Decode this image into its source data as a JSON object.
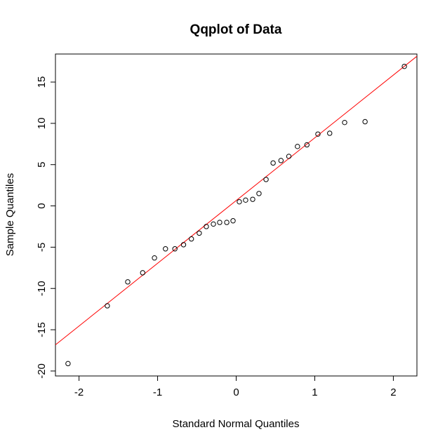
{
  "chart_data": {
    "type": "scatter",
    "title": "Qqplot of Data",
    "xlabel": "Standard Normal Quantiles",
    "ylabel": "Sample Quantiles",
    "xlim": [
      -2.3,
      2.3
    ],
    "ylim": [
      -20.6,
      18.4
    ],
    "x_ticks": [
      -2,
      -1,
      0,
      1,
      2
    ],
    "x_tick_labels": [
      "-2",
      "-1",
      "0",
      "1",
      "2"
    ],
    "y_ticks": [
      -20,
      -15,
      -10,
      -5,
      0,
      5,
      10,
      15
    ],
    "y_tick_labels": [
      "-20",
      "-15",
      "-10",
      "-5",
      "0",
      "5",
      "10",
      "15"
    ],
    "grid": false,
    "points": {
      "x": [
        -2.14,
        -1.64,
        -1.38,
        -1.19,
        -1.04,
        -0.9,
        -0.78,
        -0.67,
        -0.57,
        -0.47,
        -0.38,
        -0.29,
        -0.21,
        -0.12,
        -0.04,
        0.04,
        0.12,
        0.21,
        0.29,
        0.38,
        0.47,
        0.57,
        0.67,
        0.78,
        0.9,
        1.04,
        1.19,
        1.38,
        1.64,
        2.14
      ],
      "y": [
        -19.1,
        -12.1,
        -9.2,
        -8.1,
        -6.3,
        -5.2,
        -5.2,
        -4.7,
        -4.0,
        -3.3,
        -2.5,
        -2.2,
        -2.0,
        -2.0,
        -1.8,
        0.5,
        0.7,
        0.8,
        1.5,
        3.2,
        5.2,
        5.5,
        6.0,
        7.2,
        7.4,
        8.7,
        8.8,
        10.1,
        10.2,
        16.9
      ]
    },
    "reference_line": {
      "intercept": 0.65,
      "slope": 7.6
    },
    "colors": {
      "points": "#000000",
      "line": "#ff0000",
      "frame": "#000000"
    }
  }
}
